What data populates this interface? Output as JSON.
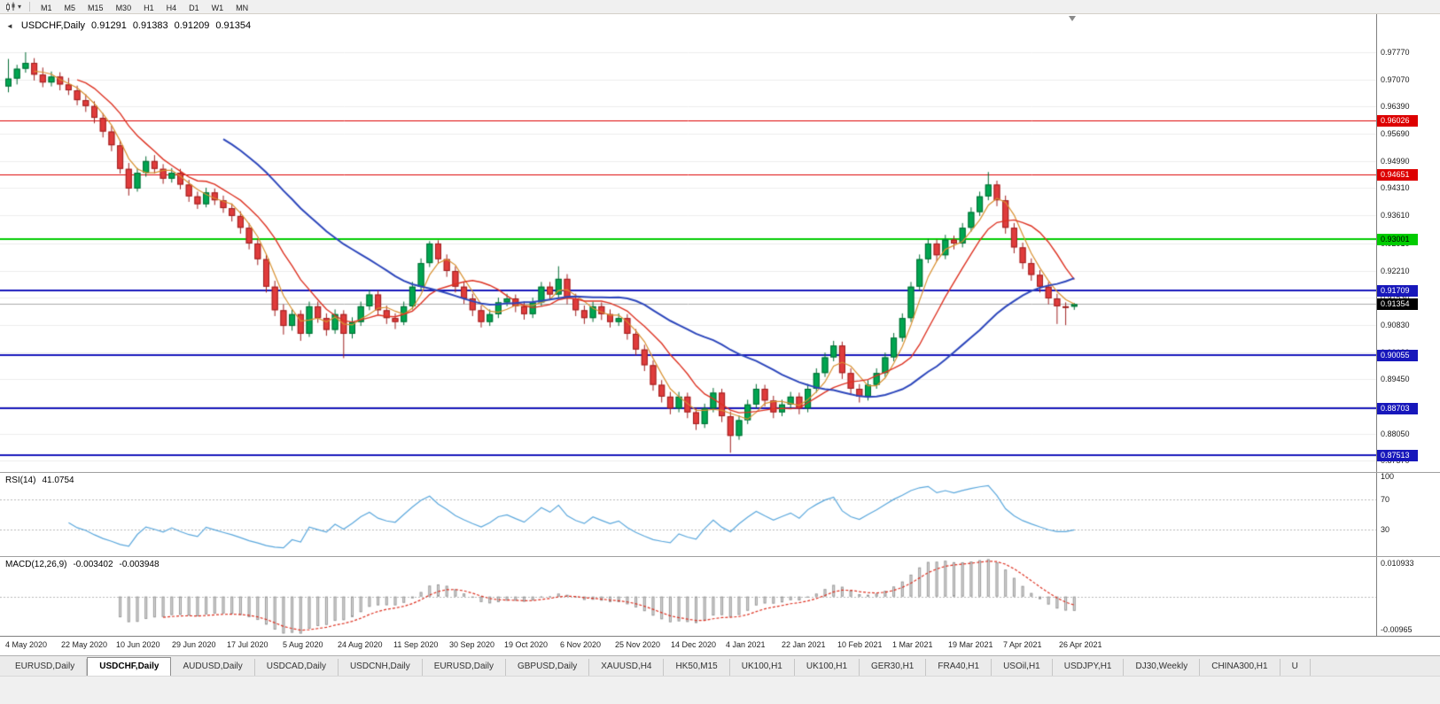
{
  "icons": {
    "collapse_arrow": "◄",
    "dropdown_caret": "▾"
  },
  "toolbar": {
    "timeframes": [
      "M1",
      "M5",
      "M15",
      "M30",
      "H1",
      "H4",
      "D1",
      "W1",
      "MN"
    ]
  },
  "main_chart": {
    "symbol": "USDCHF,Daily",
    "open": "0.91291",
    "high": "0.91383",
    "low": "0.91209",
    "close": "0.91354"
  },
  "price_scale": {
    "labels": [
      "0.97770",
      "0.97070",
      "0.96390",
      "0.95690",
      "0.94990",
      "0.94310",
      "0.93610",
      "0.92910",
      "0.92210",
      "0.91530",
      "0.90830",
      "0.90130",
      "0.89450",
      "0.88750",
      "0.88050",
      "0.87370"
    ]
  },
  "current_price": {
    "value": 0.91354,
    "label": "0.91354",
    "badge_bg": "#000000",
    "badge_text": "#ffffff"
  },
  "hlines": [
    {
      "value": 0.96026,
      "label": "0.96026",
      "color": "#dd0000",
      "width": 1,
      "badge_text": "#ffffff"
    },
    {
      "value": 0.94651,
      "label": "0.94651",
      "color": "#dd0000",
      "width": 1,
      "badge_text": "#ffffff"
    },
    {
      "value": 0.93001,
      "label": "0.93001",
      "color": "#00cc00",
      "width": 2,
      "badge_text": "#000000"
    },
    {
      "value": 0.91709,
      "label": "0.91709",
      "color": "#1717bb",
      "width": 2,
      "badge_text": "#ffffff"
    },
    {
      "value": 0.90055,
      "label": "0.90055",
      "color": "#1717bb",
      "width": 2,
      "badge_text": "#ffffff"
    },
    {
      "value": 0.88703,
      "label": "0.88703",
      "color": "#1717bb",
      "width": 2,
      "badge_text": "#ffffff"
    },
    {
      "value": 0.87513,
      "label": "0.87513",
      "color": "#1717bb",
      "width": 2,
      "badge_text": "#ffffff"
    }
  ],
  "rsi_panel": {
    "name": "RSI(14)",
    "value": "41.0754",
    "levels": [
      {
        "value": 100,
        "label": "100",
        "dashed": false
      },
      {
        "value": 70,
        "label": "70",
        "dashed": true
      },
      {
        "value": 30,
        "label": "30",
        "dashed": true
      }
    ]
  },
  "macd_panel": {
    "name": "MACD(12,26,9)",
    "value1": "-0.003402",
    "value2": "-0.003948",
    "axis_max": "0.010933",
    "axis_min": "-0.00965"
  },
  "date_axis": {
    "labels": [
      "4 May 2020",
      "22 May 2020",
      "10 Jun 2020",
      "29 Jun 2020",
      "17 Jul 2020",
      "5 Aug 2020",
      "24 Aug 2020",
      "11 Sep 2020",
      "30 Sep 2020",
      "19 Oct 2020",
      "6 Nov 2020",
      "25 Nov 2020",
      "14 Dec 2020",
      "4 Jan 2021",
      "22 Jan 2021",
      "10 Feb 2021",
      "1 Mar 2021",
      "19 Mar 2021",
      "7 Apr 2021",
      "26 Apr 2021"
    ]
  },
  "tabs": [
    {
      "label": "EURUSD,Daily",
      "active": false
    },
    {
      "label": "USDCHF,Daily",
      "active": true
    },
    {
      "label": "AUDUSD,Daily",
      "active": false
    },
    {
      "label": "USDCAD,Daily",
      "active": false
    },
    {
      "label": "USDCNH,Daily",
      "active": false
    },
    {
      "label": "EURUSD,Daily",
      "active": false
    },
    {
      "label": "GBPUSD,Daily",
      "active": false
    },
    {
      "label": "XAUUSD,H4",
      "active": false
    },
    {
      "label": "HK50,M15",
      "active": false
    },
    {
      "label": "UK100,H1",
      "active": false
    },
    {
      "label": "UK100,H1",
      "active": false
    },
    {
      "label": "GER30,H1",
      "active": false
    },
    {
      "label": "FRA40,H1",
      "active": false
    },
    {
      "label": "USOil,H1",
      "active": false
    },
    {
      "label": "USDJPY,H1",
      "active": false
    },
    {
      "label": "DJ30,Weekly",
      "active": false
    },
    {
      "label": "CHINA300,H1",
      "active": false
    },
    {
      "label": "U",
      "active": false
    }
  ],
  "colors": {
    "up": "#00a651",
    "up_border": "#006b33",
    "down": "#e03c3c",
    "down_border": "#9e1f1f",
    "ma_fast": "#d8902f",
    "ma_mid": "#dd3222",
    "ma_slow": "#2c46bb",
    "rsi": "#5aa7dc",
    "rsi_level": "#b8b8b8",
    "macd_bar_fill": "#dedede",
    "macd_bar_stroke": "#9a9a9a",
    "macd_signal": "#dd3222",
    "macd_zero": "#b8b8b8",
    "grid": "#ececec",
    "current_line": "#aaaaaa"
  },
  "chart_data": {
    "type": "candlestick",
    "title": "USDCHF,Daily",
    "ylim": [
      0.8708,
      0.9874
    ],
    "rsi_ylim": [
      -5,
      105
    ],
    "ma_periods": {
      "fast": 4,
      "mid": 9,
      "slow": 26
    },
    "rsi_period": 7,
    "macd_periods": [
      6,
      13,
      5
    ],
    "ohlc": [
      [
        0.969,
        0.976,
        0.9675,
        0.971
      ],
      [
        0.971,
        0.9745,
        0.9695,
        0.9735
      ],
      [
        0.9735,
        0.9777,
        0.9725,
        0.975
      ],
      [
        0.975,
        0.9762,
        0.9705,
        0.972
      ],
      [
        0.972,
        0.9738,
        0.9688,
        0.97
      ],
      [
        0.97,
        0.9728,
        0.969,
        0.9715
      ],
      [
        0.9715,
        0.9726,
        0.968,
        0.9695
      ],
      [
        0.9695,
        0.9712,
        0.9668,
        0.968
      ],
      [
        0.968,
        0.9692,
        0.9642,
        0.9655
      ],
      [
        0.9655,
        0.967,
        0.9625,
        0.964
      ],
      [
        0.964,
        0.9652,
        0.9596,
        0.961
      ],
      [
        0.961,
        0.9622,
        0.956,
        0.9575
      ],
      [
        0.9575,
        0.959,
        0.9525,
        0.954
      ],
      [
        0.954,
        0.9552,
        0.9468,
        0.948
      ],
      [
        0.948,
        0.9495,
        0.9412,
        0.943
      ],
      [
        0.943,
        0.9482,
        0.9422,
        0.947
      ],
      [
        0.947,
        0.9512,
        0.946,
        0.95
      ],
      [
        0.95,
        0.9515,
        0.9468,
        0.948
      ],
      [
        0.948,
        0.9492,
        0.9442,
        0.9455
      ],
      [
        0.9455,
        0.9482,
        0.9445,
        0.947
      ],
      [
        0.947,
        0.948,
        0.9428,
        0.944
      ],
      [
        0.944,
        0.9452,
        0.9396,
        0.941
      ],
      [
        0.941,
        0.9422,
        0.9378,
        0.939
      ],
      [
        0.939,
        0.9432,
        0.9382,
        0.942
      ],
      [
        0.942,
        0.943,
        0.9388,
        0.94
      ],
      [
        0.94,
        0.9412,
        0.9368,
        0.938
      ],
      [
        0.938,
        0.9392,
        0.9346,
        0.936
      ],
      [
        0.936,
        0.9372,
        0.9315,
        0.933
      ],
      [
        0.933,
        0.9342,
        0.9275,
        0.929
      ],
      [
        0.929,
        0.9302,
        0.9235,
        0.925
      ],
      [
        0.925,
        0.9262,
        0.9165,
        0.918
      ],
      [
        0.918,
        0.9195,
        0.9105,
        0.912
      ],
      [
        0.912,
        0.9135,
        0.9058,
        0.908
      ],
      [
        0.908,
        0.9122,
        0.9068,
        0.911
      ],
      [
        0.911,
        0.912,
        0.9042,
        0.906
      ],
      [
        0.906,
        0.9142,
        0.9052,
        0.913
      ],
      [
        0.913,
        0.9142,
        0.9088,
        0.91
      ],
      [
        0.91,
        0.9112,
        0.9055,
        0.907
      ],
      [
        0.907,
        0.9122,
        0.906,
        0.911
      ],
      [
        0.911,
        0.912,
        0.8998,
        0.906
      ],
      [
        0.906,
        0.9102,
        0.9048,
        0.909
      ],
      [
        0.909,
        0.9142,
        0.908,
        0.913
      ],
      [
        0.913,
        0.9172,
        0.912,
        0.916
      ],
      [
        0.916,
        0.917,
        0.9108,
        0.912
      ],
      [
        0.912,
        0.9132,
        0.9085,
        0.91
      ],
      [
        0.91,
        0.9112,
        0.9072,
        0.909
      ],
      [
        0.909,
        0.9142,
        0.9082,
        0.913
      ],
      [
        0.913,
        0.9192,
        0.9122,
        0.918
      ],
      [
        0.918,
        0.9252,
        0.9172,
        0.924
      ],
      [
        0.924,
        0.9296,
        0.923,
        0.929
      ],
      [
        0.929,
        0.9298,
        0.9238,
        0.925
      ],
      [
        0.925,
        0.9262,
        0.9205,
        0.922
      ],
      [
        0.922,
        0.9232,
        0.9165,
        0.918
      ],
      [
        0.918,
        0.9192,
        0.9136,
        0.915
      ],
      [
        0.915,
        0.9162,
        0.9105,
        0.912
      ],
      [
        0.912,
        0.9132,
        0.9076,
        0.909
      ],
      [
        0.909,
        0.9122,
        0.908,
        0.911
      ],
      [
        0.911,
        0.9152,
        0.91,
        0.914
      ],
      [
        0.914,
        0.9162,
        0.913,
        0.915
      ],
      [
        0.915,
        0.916,
        0.9115,
        0.913
      ],
      [
        0.913,
        0.9142,
        0.9096,
        0.911
      ],
      [
        0.911,
        0.9152,
        0.91,
        0.914
      ],
      [
        0.914,
        0.9192,
        0.913,
        0.918
      ],
      [
        0.918,
        0.9192,
        0.9145,
        0.916
      ],
      [
        0.916,
        0.9232,
        0.915,
        0.92
      ],
      [
        0.92,
        0.9212,
        0.9135,
        0.915
      ],
      [
        0.915,
        0.9162,
        0.9105,
        0.912
      ],
      [
        0.912,
        0.9132,
        0.9085,
        0.91
      ],
      [
        0.91,
        0.9142,
        0.909,
        0.913
      ],
      [
        0.913,
        0.914,
        0.9095,
        0.911
      ],
      [
        0.911,
        0.9122,
        0.9076,
        0.909
      ],
      [
        0.909,
        0.9112,
        0.908,
        0.91
      ],
      [
        0.91,
        0.911,
        0.9045,
        0.906
      ],
      [
        0.906,
        0.9072,
        0.9005,
        0.902
      ],
      [
        0.902,
        0.9032,
        0.8965,
        0.898
      ],
      [
        0.898,
        0.8992,
        0.8915,
        0.893
      ],
      [
        0.893,
        0.8942,
        0.8885,
        0.89
      ],
      [
        0.89,
        0.8912,
        0.8855,
        0.887
      ],
      [
        0.887,
        0.8912,
        0.886,
        0.89
      ],
      [
        0.89,
        0.891,
        0.8845,
        0.886
      ],
      [
        0.886,
        0.8872,
        0.8815,
        0.883
      ],
      [
        0.883,
        0.8882,
        0.882,
        0.887
      ],
      [
        0.887,
        0.8922,
        0.886,
        0.891
      ],
      [
        0.891,
        0.892,
        0.8835,
        0.885
      ],
      [
        0.885,
        0.8862,
        0.8757,
        0.88
      ],
      [
        0.88,
        0.8852,
        0.879,
        0.884
      ],
      [
        0.884,
        0.8892,
        0.883,
        0.888
      ],
      [
        0.888,
        0.8932,
        0.887,
        0.892
      ],
      [
        0.892,
        0.893,
        0.8875,
        0.889
      ],
      [
        0.889,
        0.8902,
        0.8845,
        0.886
      ],
      [
        0.886,
        0.8892,
        0.885,
        0.888
      ],
      [
        0.888,
        0.8912,
        0.887,
        0.89
      ],
      [
        0.89,
        0.891,
        0.8855,
        0.887
      ],
      [
        0.887,
        0.8932,
        0.886,
        0.892
      ],
      [
        0.892,
        0.8972,
        0.891,
        0.896
      ],
      [
        0.896,
        0.9012,
        0.895,
        0.9
      ],
      [
        0.9,
        0.9042,
        0.899,
        0.903
      ],
      [
        0.903,
        0.904,
        0.8945,
        0.896
      ],
      [
        0.896,
        0.8972,
        0.8905,
        0.892
      ],
      [
        0.892,
        0.8932,
        0.8885,
        0.89
      ],
      [
        0.89,
        0.8942,
        0.889,
        0.893
      ],
      [
        0.893,
        0.8972,
        0.892,
        0.896
      ],
      [
        0.896,
        0.9012,
        0.895,
        0.9
      ],
      [
        0.9,
        0.9062,
        0.899,
        0.905
      ],
      [
        0.905,
        0.9112,
        0.904,
        0.91
      ],
      [
        0.91,
        0.9192,
        0.909,
        0.918
      ],
      [
        0.918,
        0.9262,
        0.917,
        0.925
      ],
      [
        0.925,
        0.9302,
        0.924,
        0.929
      ],
      [
        0.929,
        0.93,
        0.9245,
        0.926
      ],
      [
        0.926,
        0.9312,
        0.925,
        0.93
      ],
      [
        0.93,
        0.931,
        0.9275,
        0.929
      ],
      [
        0.929,
        0.9342,
        0.928,
        0.933
      ],
      [
        0.933,
        0.9382,
        0.932,
        0.937
      ],
      [
        0.937,
        0.9422,
        0.936,
        0.941
      ],
      [
        0.941,
        0.9472,
        0.94,
        0.944
      ],
      [
        0.944,
        0.945,
        0.9385,
        0.94
      ],
      [
        0.94,
        0.9412,
        0.9315,
        0.933
      ],
      [
        0.933,
        0.9342,
        0.9265,
        0.928
      ],
      [
        0.928,
        0.9292,
        0.9225,
        0.924
      ],
      [
        0.924,
        0.9252,
        0.9195,
        0.921
      ],
      [
        0.921,
        0.9222,
        0.9165,
        0.918
      ],
      [
        0.918,
        0.9192,
        0.9135,
        0.915
      ],
      [
        0.915,
        0.9162,
        0.9085,
        0.913
      ],
      [
        0.913,
        0.914,
        0.9082,
        0.9129
      ],
      [
        0.91291,
        0.91383,
        0.91209,
        0.91354
      ]
    ]
  }
}
